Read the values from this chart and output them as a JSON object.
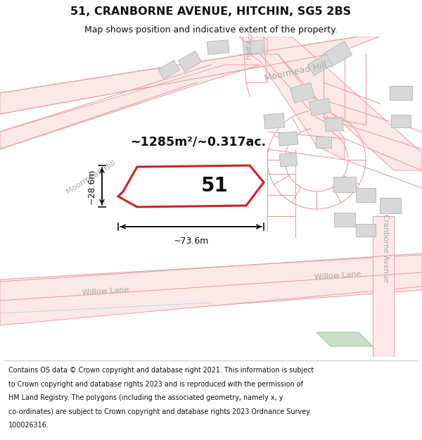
{
  "title": "51, CRANBORNE AVENUE, HITCHIN, SG5 2BS",
  "subtitle": "Map shows position and indicative extent of the property.",
  "footer_lines": [
    "Contains OS data © Crown copyright and database right 2021. This information is subject",
    "to Crown copyright and database rights 2023 and is reproduced with the permission of",
    "HM Land Registry. The polygons (including the associated geometry, namely x, y",
    "co-ordinates) are subject to Crown copyright and database rights 2023 Ordnance Survey",
    "100026316."
  ],
  "area_text": "~1285m²/~0.317ac.",
  "label_51": "51",
  "dim_width": "~73.6m",
  "dim_height": "~28.6m",
  "road_label_moormead": "Moormead Hill",
  "road_label_moormead2": "Moormead Hill",
  "road_label_willow1": "Willow Lane",
  "road_label_willow2": "Willow Lane",
  "road_label_cranborne": "Cranborne Avenue",
  "road_label_halfacre": "Half-Acre",
  "bg_color": "#ffffff",
  "map_bg": "#ffffff",
  "road_line_color": "#e8a0a0",
  "road_fill_color": "#fce8e8",
  "property_fill": "#ffffff",
  "property_edge": "#cc2222",
  "building_fill": "#d8d8d8",
  "building_edge": "#bbbbbb",
  "dim_color": "#111111",
  "area_color": "#111111",
  "road_text_color": "#aaaaaa",
  "green_fill": "#c8dfc8"
}
